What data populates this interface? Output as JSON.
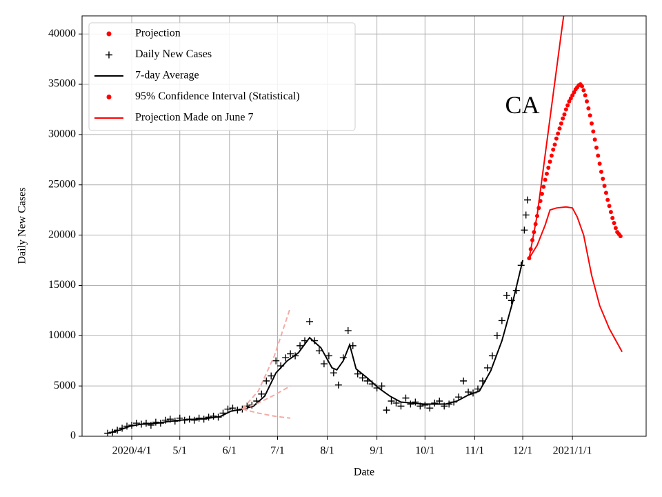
{
  "chart_data": {
    "type": "line",
    "xlabel": "Date",
    "ylabel": "Daily New Cases",
    "annotation": {
      "text": "CA",
      "x": "2020-11-20",
      "y": 32700
    },
    "xlim": [
      "2020-03-01",
      "2021-02-16"
    ],
    "xticks": [
      {
        "value": "2020-04-01",
        "label": "2020/4/1"
      },
      {
        "value": "2020-05-01",
        "label": "5/1"
      },
      {
        "value": "2020-06-01",
        "label": "6/1"
      },
      {
        "value": "2020-07-01",
        "label": "7/1"
      },
      {
        "value": "2020-08-01",
        "label": "8/1"
      },
      {
        "value": "2020-09-01",
        "label": "9/1"
      },
      {
        "value": "2020-10-01",
        "label": "10/1"
      },
      {
        "value": "2020-11-01",
        "label": "11/1"
      },
      {
        "value": "2020-12-01",
        "label": "12/1"
      },
      {
        "value": "2021-01-01",
        "label": "2021/1/1"
      }
    ],
    "ylim": [
      0,
      41800
    ],
    "yticks": [
      0,
      5000,
      10000,
      15000,
      20000,
      25000,
      30000,
      35000,
      40000
    ],
    "grid": true,
    "legend": "upper left",
    "series": [
      {
        "name": "Projection",
        "color": "#ff0000",
        "style": "dot",
        "legend_marker": "dot",
        "legend_color": "#ff0000",
        "x": [
          "2020-12-05",
          "2020-12-06",
          "2020-12-07",
          "2020-12-08",
          "2020-12-09",
          "2020-12-10",
          "2020-12-11",
          "2020-12-12",
          "2020-12-13",
          "2020-12-14",
          "2020-12-15",
          "2020-12-16",
          "2020-12-17",
          "2020-12-18",
          "2020-12-19",
          "2020-12-20",
          "2020-12-21",
          "2020-12-22",
          "2020-12-23",
          "2020-12-24",
          "2020-12-25",
          "2020-12-26",
          "2020-12-27",
          "2020-12-28",
          "2020-12-29",
          "2020-12-30",
          "2020-12-31",
          "2021-01-01",
          "2021-01-02",
          "2021-01-03",
          "2021-01-04",
          "2021-01-05",
          "2021-01-06",
          "2021-01-07",
          "2021-01-08",
          "2021-01-09",
          "2021-01-10",
          "2021-01-11",
          "2021-01-12",
          "2021-01-13",
          "2021-01-14",
          "2021-01-15",
          "2021-01-16",
          "2021-01-17",
          "2021-01-18",
          "2021-01-19",
          "2021-01-20",
          "2021-01-21",
          "2021-01-22",
          "2021-01-23",
          "2021-01-24",
          "2021-01-25",
          "2021-01-26",
          "2021-01-27",
          "2021-01-28",
          "2021-01-29",
          "2021-01-30",
          "2021-01-31"
        ],
        "values": [
          17700,
          18600,
          19500,
          20300,
          21100,
          21900,
          22700,
          23400,
          24100,
          24800,
          25500,
          26100,
          26700,
          27300,
          27900,
          28500,
          29000,
          29600,
          30100,
          30600,
          31100,
          31600,
          32000,
          32500,
          32900,
          33300,
          33600,
          33900,
          34200,
          34500,
          34700,
          34900,
          35000,
          34800,
          34400,
          33900,
          33300,
          32600,
          31900,
          31100,
          30300,
          29500,
          28700,
          27900,
          27100,
          26300,
          25600,
          24900,
          24200,
          23500,
          22900,
          22300,
          21700,
          21200,
          20700,
          20300,
          20100,
          19900
        ]
      },
      {
        "name": "Daily New Cases",
        "color": "#000000",
        "style": "plus",
        "legend_marker": "plus",
        "legend_color": "#000000",
        "x": [
          "2020-03-17",
          "2020-03-20",
          "2020-03-23",
          "2020-03-26",
          "2020-03-29",
          "2020-04-01",
          "2020-04-04",
          "2020-04-07",
          "2020-04-10",
          "2020-04-13",
          "2020-04-16",
          "2020-04-19",
          "2020-04-22",
          "2020-04-25",
          "2020-04-28",
          "2020-05-01",
          "2020-05-04",
          "2020-05-07",
          "2020-05-10",
          "2020-05-13",
          "2020-05-16",
          "2020-05-19",
          "2020-05-22",
          "2020-05-25",
          "2020-05-28",
          "2020-05-31",
          "2020-06-03",
          "2020-06-06",
          "2020-06-09",
          "2020-06-12",
          "2020-06-15",
          "2020-06-18",
          "2020-06-21",
          "2020-06-24",
          "2020-06-27",
          "2020-06-30",
          "2020-07-03",
          "2020-07-06",
          "2020-07-09",
          "2020-07-12",
          "2020-07-15",
          "2020-07-18",
          "2020-07-21",
          "2020-07-24",
          "2020-07-27",
          "2020-07-30",
          "2020-08-02",
          "2020-08-05",
          "2020-08-08",
          "2020-08-11",
          "2020-08-14",
          "2020-08-17",
          "2020-08-20",
          "2020-08-23",
          "2020-08-26",
          "2020-08-29",
          "2020-09-01",
          "2020-09-04",
          "2020-09-07",
          "2020-09-10",
          "2020-09-13",
          "2020-09-16",
          "2020-09-19",
          "2020-09-22",
          "2020-09-25",
          "2020-09-28",
          "2020-10-01",
          "2020-10-04",
          "2020-10-07",
          "2020-10-10",
          "2020-10-13",
          "2020-10-16",
          "2020-10-19",
          "2020-10-22",
          "2020-10-25",
          "2020-10-28",
          "2020-10-31",
          "2020-11-03",
          "2020-11-06",
          "2020-11-09",
          "2020-11-12",
          "2020-11-15",
          "2020-11-18",
          "2020-11-21",
          "2020-11-24",
          "2020-11-27",
          "2020-11-30",
          "2020-12-02",
          "2020-12-03",
          "2020-12-04"
        ],
        "values": [
          300,
          400,
          600,
          800,
          1000,
          1100,
          1300,
          1200,
          1300,
          1100,
          1400,
          1300,
          1600,
          1700,
          1500,
          1800,
          1600,
          1700,
          1600,
          1800,
          1700,
          1900,
          2000,
          1900,
          2300,
          2700,
          2800,
          2600,
          2700,
          3000,
          3100,
          3500,
          4200,
          5500,
          6000,
          7500,
          7000,
          7800,
          8200,
          8000,
          9000,
          9500,
          11400,
          9500,
          8500,
          7200,
          8000,
          6300,
          5100,
          7800,
          10500,
          9000,
          6200,
          5800,
          5500,
          5200,
          4800,
          5000,
          2600,
          3500,
          3300,
          3000,
          3800,
          3200,
          3400,
          3000,
          3100,
          2800,
          3300,
          3500,
          3000,
          3200,
          3400,
          3900,
          5500,
          4400,
          4300,
          4700,
          5500,
          6800,
          8000,
          10000,
          11500,
          14000,
          13500,
          14500,
          17000,
          20500,
          22000,
          23500
        ]
      },
      {
        "name": "7-day Average",
        "color": "#000000",
        "style": "line",
        "legend_marker": "line",
        "legend_color": "#000000",
        "x": [
          "2020-03-17",
          "2020-03-24",
          "2020-03-31",
          "2020-04-07",
          "2020-04-14",
          "2020-04-21",
          "2020-04-28",
          "2020-05-05",
          "2020-05-12",
          "2020-05-19",
          "2020-05-26",
          "2020-06-02",
          "2020-06-09",
          "2020-06-16",
          "2020-06-23",
          "2020-06-30",
          "2020-07-07",
          "2020-07-14",
          "2020-07-21",
          "2020-07-28",
          "2020-08-04",
          "2020-08-07",
          "2020-08-11",
          "2020-08-15",
          "2020-08-19",
          "2020-08-26",
          "2020-09-02",
          "2020-09-09",
          "2020-09-16",
          "2020-09-23",
          "2020-09-30",
          "2020-10-07",
          "2020-10-14",
          "2020-10-21",
          "2020-10-28",
          "2020-11-04",
          "2020-11-11",
          "2020-11-18",
          "2020-11-25",
          "2020-12-01"
        ],
        "values": [
          300,
          600,
          1000,
          1200,
          1250,
          1400,
          1550,
          1650,
          1700,
          1800,
          1950,
          2500,
          2700,
          3000,
          4000,
          6300,
          7500,
          8300,
          9800,
          8800,
          6800,
          6600,
          7500,
          9100,
          6700,
          5800,
          4800,
          4000,
          3400,
          3300,
          3200,
          3200,
          3200,
          3500,
          4100,
          4500,
          6500,
          9500,
          13500,
          17500
        ]
      },
      {
        "name": "95% Confidence Interval (Statistical)",
        "color": "#ff0000",
        "style": "line",
        "legend_marker": "dot",
        "legend_color": "#ff0000",
        "lines": [
          {
            "x": [
              "2020-12-05",
              "2020-12-10",
              "2020-12-15",
              "2020-12-20",
              "2020-12-25",
              "2020-12-28"
            ],
            "values": [
              17700,
              22000,
              28000,
              34000,
              40000,
              43500
            ]
          },
          {
            "x": [
              "2020-12-05",
              "2020-12-10",
              "2020-12-15",
              "2020-12-18",
              "2020-12-22",
              "2020-12-28",
              "2021-01-01",
              "2021-01-04",
              "2021-01-08",
              "2021-01-13",
              "2021-01-18",
              "2021-01-24",
              "2021-02-01"
            ],
            "values": [
              17700,
              19000,
              21000,
              22500,
              22700,
              22800,
              22700,
              21800,
              20000,
              16000,
              13000,
              10700,
              8400
            ]
          }
        ]
      },
      {
        "name": "Projection Made on June 7",
        "color": "#f4aaa4",
        "style": "dash",
        "legend_marker": "line",
        "legend_color": "#ff0000",
        "lines": [
          {
            "x": [
              "2020-06-09",
              "2020-06-19",
              "2020-06-29",
              "2020-07-09"
            ],
            "values": [
              2700,
              4500,
              8000,
              12800
            ]
          },
          {
            "x": [
              "2020-06-09",
              "2020-06-19",
              "2020-06-29",
              "2020-07-09"
            ],
            "values": [
              2700,
              3300,
              4100,
              5000
            ]
          },
          {
            "x": [
              "2020-06-09",
              "2020-06-19",
              "2020-06-29",
              "2020-07-09"
            ],
            "values": [
              2700,
              2300,
              2000,
              1800
            ]
          }
        ]
      }
    ]
  }
}
